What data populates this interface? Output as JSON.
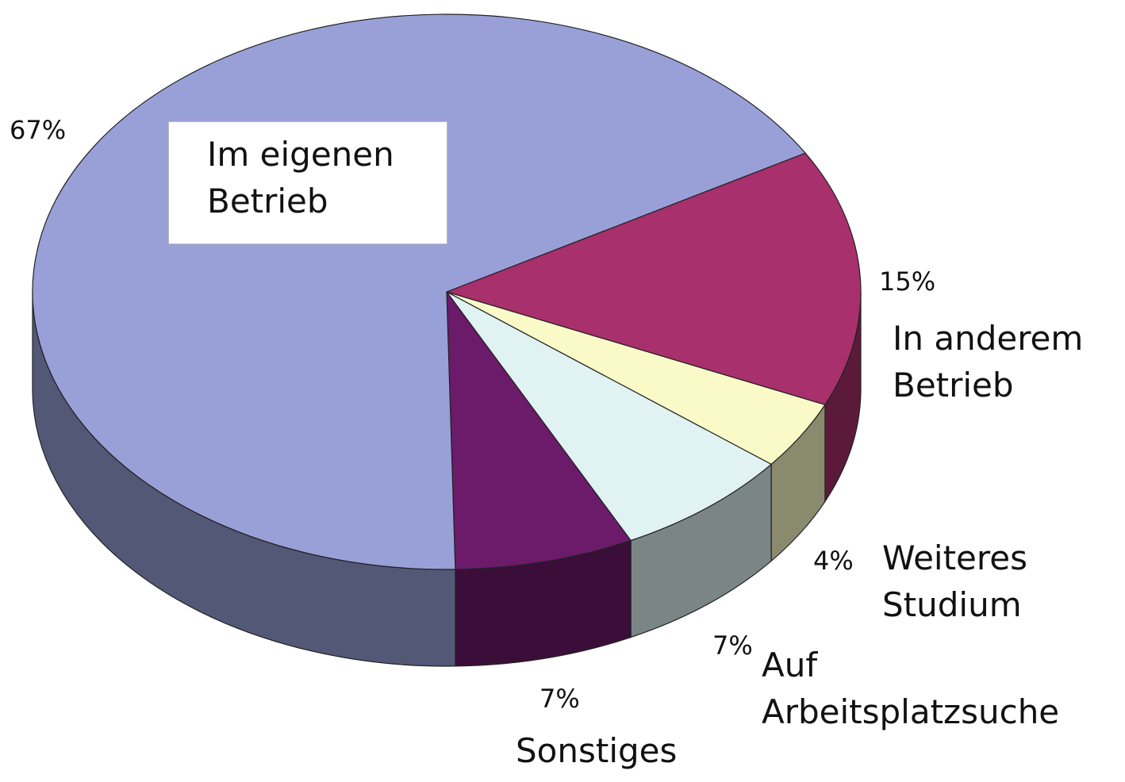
{
  "chart_data": {
    "type": "pie",
    "categories": [
      "In anderem Betrieb",
      "Weiteres Studium",
      "Auf Arbeitsplatzsuche",
      "Sonstiges",
      "Im eigenen Betrieb"
    ],
    "values": [
      15,
      4,
      7,
      7,
      67
    ],
    "value_labels": [
      "15%",
      "4%",
      "7%",
      "7%",
      "67%"
    ],
    "colors": [
      "#a8306c",
      "#fafac8",
      "#e0f2f2",
      "#6c1a6a",
      "#99a0d8"
    ]
  }
}
